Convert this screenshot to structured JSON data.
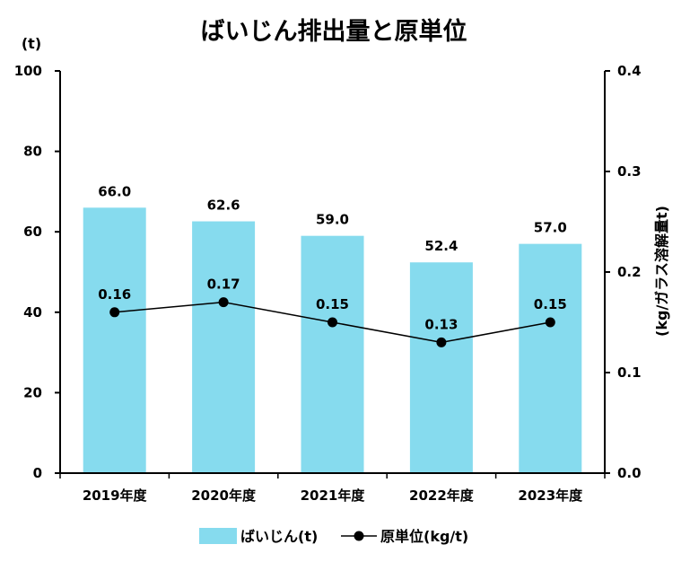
{
  "chart_data": {
    "type": "bar",
    "title": "ばいじん排出量と原単位",
    "categories": [
      "2019年度",
      "2020年度",
      "2021年度",
      "2022年度",
      "2023年度"
    ],
    "series": [
      {
        "name": "ばいじん(t)",
        "type": "bar",
        "axis": "left",
        "color": "#86DBEE",
        "values": [
          66.0,
          62.6,
          59.0,
          52.4,
          57.0
        ],
        "labels": [
          "66.0",
          "62.6",
          "59.0",
          "52.4",
          "57.0"
        ]
      },
      {
        "name": "原単位(kg/t)",
        "type": "line",
        "axis": "right",
        "color": "#000000",
        "values": [
          0.16,
          0.17,
          0.15,
          0.13,
          0.15
        ],
        "labels": [
          "0.16",
          "0.17",
          "0.15",
          "0.13",
          "0.15"
        ]
      }
    ],
    "y_left": {
      "label": "(t)",
      "ylim": [
        0,
        100
      ],
      "ticks": [
        0,
        20,
        40,
        60,
        80,
        100
      ],
      "tick_labels": [
        "0",
        "20",
        "40",
        "60",
        "80",
        "100"
      ]
    },
    "y_right": {
      "label": "(kg/ガラス溶解量t)",
      "ylim": [
        0,
        0.4
      ],
      "ticks": [
        0,
        0.1,
        0.2,
        0.3,
        0.4
      ],
      "tick_labels": [
        "0.0",
        "0.1",
        "0.2",
        "0.3",
        "0.4"
      ]
    },
    "grid": false,
    "legend_position": "bottom"
  }
}
